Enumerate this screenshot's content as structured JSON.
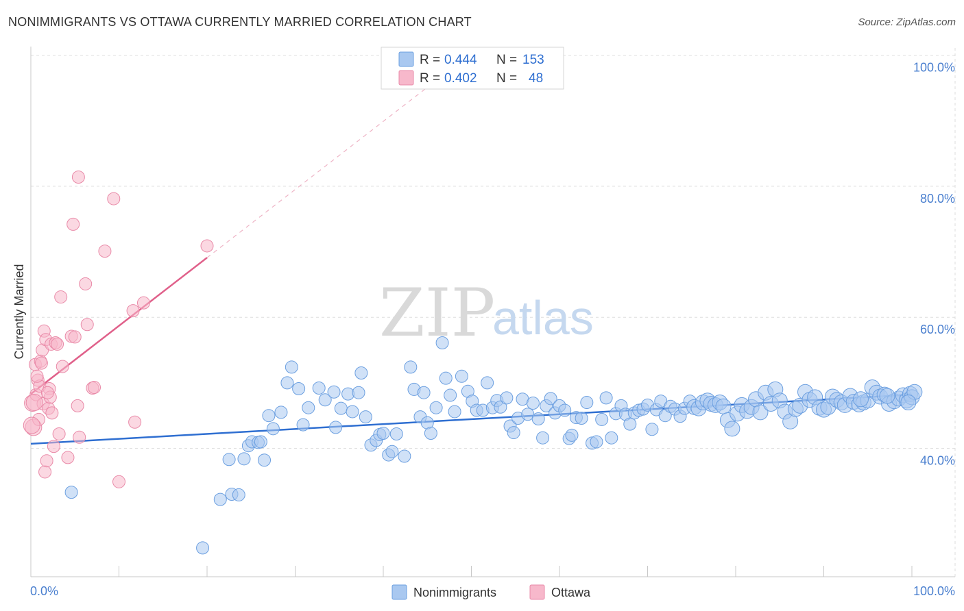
{
  "title": "NONIMMIGRANTS VS OTTAWA CURRENTLY MARRIED CORRELATION CHART",
  "source": "Source: ZipAtlas.com",
  "watermark": {
    "part1": "ZIP",
    "part2": "atlas"
  },
  "legend": {
    "rows": [
      {
        "r_label": "R =",
        "r_value": "0.444",
        "n_label": "N =",
        "n_value": "153",
        "color": "#a9c8f0"
      },
      {
        "r_label": "R =",
        "r_value": "0.402",
        "n_label": "N =",
        "n_value": "48",
        "color": "#f7b8cb"
      }
    ]
  },
  "bottom_legend": [
    {
      "label": "Nonimmigrants",
      "color": "#a9c8f0"
    },
    {
      "label": "Ottawa",
      "color": "#f7b8cb"
    }
  ],
  "chart_data": {
    "type": "scatter",
    "title": "NONIMMIGRANTS VS OTTAWA CURRENTLY MARRIED CORRELATION CHART",
    "xlabel": "",
    "ylabel": "Currently Married",
    "xlim": [
      0,
      100
    ],
    "ylim": [
      21,
      102
    ],
    "x_tick_labels": [
      "0.0%",
      "100.0%"
    ],
    "y_ticks": [
      40,
      60,
      80,
      100
    ],
    "y_tick_labels": [
      "40.0%",
      "60.0%",
      "80.0%",
      "100.0%"
    ],
    "grid": true,
    "legend_placement": "top-center",
    "series": [
      {
        "name": "Nonimmigrants",
        "color": "#a9c8f0",
        "stroke": "#6b9fe0",
        "trend": {
          "x": [
            0,
            100
          ],
          "y": [
            40.7,
            48.2
          ],
          "color": "#2f6fd1"
        },
        "points": [
          [
            4.6,
            33.3
          ],
          [
            19.5,
            24.8
          ],
          [
            21.5,
            32.2
          ],
          [
            22.5,
            38.3
          ],
          [
            22.8,
            33.0
          ],
          [
            23.6,
            32.9
          ],
          [
            24.2,
            38.4
          ],
          [
            24.7,
            40.4
          ],
          [
            25.1,
            41.0
          ],
          [
            25.8,
            40.9
          ],
          [
            26.1,
            41.0
          ],
          [
            26.5,
            38.2
          ],
          [
            27.0,
            45.0
          ],
          [
            27.5,
            43.0
          ],
          [
            28.4,
            45.5
          ],
          [
            29.1,
            50.0
          ],
          [
            29.6,
            52.4
          ],
          [
            30.4,
            49.1
          ],
          [
            30.9,
            43.6
          ],
          [
            31.5,
            46.2
          ],
          [
            32.7,
            49.2
          ],
          [
            33.4,
            47.4
          ],
          [
            34.4,
            48.6
          ],
          [
            34.6,
            43.2
          ],
          [
            35.2,
            46.1
          ],
          [
            36.0,
            48.3
          ],
          [
            36.5,
            45.6
          ],
          [
            37.2,
            48.5
          ],
          [
            37.5,
            51.5
          ],
          [
            38.0,
            44.8
          ],
          [
            38.6,
            40.5
          ],
          [
            39.2,
            41.2
          ],
          [
            39.6,
            42.1
          ],
          [
            40.0,
            42.3
          ],
          [
            40.6,
            39.0
          ],
          [
            41.0,
            39.5
          ],
          [
            41.5,
            42.2
          ],
          [
            42.4,
            38.8
          ],
          [
            43.1,
            52.4
          ],
          [
            43.5,
            49.0
          ],
          [
            44.2,
            44.8
          ],
          [
            44.6,
            48.5
          ],
          [
            45.0,
            43.9
          ],
          [
            45.4,
            42.3
          ],
          [
            46.0,
            46.2
          ],
          [
            46.7,
            56.1
          ],
          [
            47.1,
            50.7
          ],
          [
            47.6,
            48.1
          ],
          [
            48.1,
            45.6
          ],
          [
            48.9,
            51.0
          ],
          [
            49.6,
            48.7
          ],
          [
            50.1,
            47.2
          ],
          [
            50.6,
            45.8
          ],
          [
            51.3,
            45.8
          ],
          [
            51.8,
            50.0
          ],
          [
            52.4,
            46.2
          ],
          [
            52.9,
            47.3
          ],
          [
            53.3,
            46.3
          ],
          [
            54.0,
            47.7
          ],
          [
            54.4,
            43.4
          ],
          [
            54.8,
            42.4
          ],
          [
            55.3,
            44.6
          ],
          [
            55.8,
            47.5
          ],
          [
            56.4,
            45.2
          ],
          [
            57.0,
            46.9
          ],
          [
            57.6,
            44.5
          ],
          [
            58.1,
            41.6
          ],
          [
            58.5,
            46.5
          ],
          [
            59.0,
            47.6
          ],
          [
            59.5,
            45.4
          ],
          [
            60.0,
            46.5
          ],
          [
            60.6,
            45.8
          ],
          [
            61.1,
            41.5
          ],
          [
            61.4,
            42.0
          ],
          [
            61.9,
            44.7
          ],
          [
            62.5,
            44.6
          ],
          [
            63.1,
            47.0
          ],
          [
            63.7,
            40.8
          ],
          [
            64.2,
            41.0
          ],
          [
            64.8,
            44.4
          ],
          [
            65.3,
            47.7
          ],
          [
            65.9,
            41.6
          ],
          [
            66.4,
            45.3
          ],
          [
            67.0,
            46.5
          ],
          [
            67.5,
            45.2
          ],
          [
            68.0,
            43.7
          ],
          [
            68.5,
            45.4
          ],
          [
            69.0,
            45.8
          ],
          [
            69.5,
            46.0
          ],
          [
            70.0,
            46.6
          ],
          [
            70.5,
            42.9
          ],
          [
            71.0,
            45.9
          ],
          [
            71.5,
            47.2
          ],
          [
            72.0,
            45.0
          ],
          [
            72.6,
            46.4
          ],
          [
            73.1,
            46.0
          ],
          [
            73.7,
            44.9
          ],
          [
            74.2,
            46.1
          ],
          [
            74.8,
            47.2
          ],
          [
            75.3,
            46.3
          ],
          [
            75.8,
            46.1
          ],
          [
            76.3,
            47.0
          ],
          [
            76.8,
            47.3
          ],
          [
            77.2,
            46.8
          ],
          [
            77.7,
            46.6
          ],
          [
            78.2,
            47.0
          ],
          [
            78.6,
            46.4
          ],
          [
            79.1,
            44.3
          ],
          [
            79.6,
            43.0
          ],
          [
            80.2,
            45.3
          ],
          [
            80.7,
            46.6
          ],
          [
            81.3,
            45.7
          ],
          [
            81.8,
            46.3
          ],
          [
            82.3,
            47.5
          ],
          [
            82.8,
            45.5
          ],
          [
            83.4,
            48.5
          ],
          [
            84.0,
            46.8
          ],
          [
            84.5,
            49.0
          ],
          [
            85.0,
            47.3
          ],
          [
            85.6,
            45.6
          ],
          [
            86.2,
            44.1
          ],
          [
            86.8,
            46.0
          ],
          [
            87.3,
            46.5
          ],
          [
            87.9,
            48.6
          ],
          [
            88.4,
            47.4
          ],
          [
            89.0,
            47.8
          ],
          [
            89.5,
            46.2
          ],
          [
            90.0,
            45.9
          ],
          [
            90.5,
            46.3
          ],
          [
            91.0,
            47.9
          ],
          [
            91.5,
            47.4
          ],
          [
            92.0,
            47.0
          ],
          [
            92.4,
            46.6
          ],
          [
            93.0,
            48.0
          ],
          [
            93.4,
            47.1
          ],
          [
            94.0,
            46.7
          ],
          [
            94.5,
            47.0
          ],
          [
            95.0,
            47.3
          ],
          [
            95.5,
            49.3
          ],
          [
            96.0,
            48.5
          ],
          [
            96.4,
            47.9
          ],
          [
            96.9,
            48.2
          ],
          [
            97.4,
            46.8
          ],
          [
            98.0,
            47.2
          ],
          [
            98.5,
            47.6
          ],
          [
            99.0,
            48.1
          ],
          [
            99.4,
            47.3
          ],
          [
            99.8,
            48.3
          ],
          [
            100.0,
            47.8
          ],
          [
            100.3,
            48.6
          ],
          [
            99.6,
            47.0
          ],
          [
            97.2,
            48.0
          ],
          [
            94.2,
            47.5
          ]
        ]
      },
      {
        "name": "Ottawa",
        "color": "#f7b8cb",
        "stroke": "#e98aa8",
        "trend": {
          "x": [
            0,
            20
          ],
          "y": [
            48.3,
            69.1
          ],
          "color": "#e0608a"
        },
        "points": [
          [
            0.2,
            46.9
          ],
          [
            0.3,
            43.2
          ],
          [
            0.5,
            52.8
          ],
          [
            0.6,
            48.2
          ],
          [
            0.8,
            50.4
          ],
          [
            0.9,
            44.4
          ],
          [
            1.0,
            49.5
          ],
          [
            1.1,
            53.3
          ],
          [
            1.3,
            55.0
          ],
          [
            1.4,
            46.8
          ],
          [
            1.5,
            57.9
          ],
          [
            1.6,
            36.4
          ],
          [
            1.7,
            56.6
          ],
          [
            1.8,
            38.1
          ],
          [
            2.0,
            46.1
          ],
          [
            2.1,
            49.1
          ],
          [
            2.3,
            55.9
          ],
          [
            2.4,
            45.4
          ],
          [
            2.6,
            40.3
          ],
          [
            2.8,
            56.1
          ],
          [
            3.0,
            55.9
          ],
          [
            3.2,
            42.2
          ],
          [
            3.4,
            63.1
          ],
          [
            3.6,
            52.5
          ],
          [
            4.2,
            38.6
          ],
          [
            4.6,
            57.1
          ],
          [
            4.8,
            74.2
          ],
          [
            5.0,
            57.0
          ],
          [
            5.3,
            46.5
          ],
          [
            5.5,
            41.7
          ],
          [
            5.4,
            81.4
          ],
          [
            6.2,
            65.1
          ],
          [
            6.4,
            58.9
          ],
          [
            7.0,
            49.2
          ],
          [
            7.2,
            49.3
          ],
          [
            8.4,
            70.1
          ],
          [
            9.4,
            78.1
          ],
          [
            10.0,
            34.9
          ],
          [
            11.6,
            61.0
          ],
          [
            11.8,
            44.0
          ],
          [
            12.8,
            62.2
          ],
          [
            20.0,
            70.9
          ],
          [
            1.2,
            53.0
          ],
          [
            0.4,
            47.0
          ],
          [
            0.7,
            51.0
          ],
          [
            2.2,
            47.8
          ],
          [
            1.9,
            48.5
          ],
          [
            0.1,
            43.5
          ]
        ]
      }
    ]
  }
}
